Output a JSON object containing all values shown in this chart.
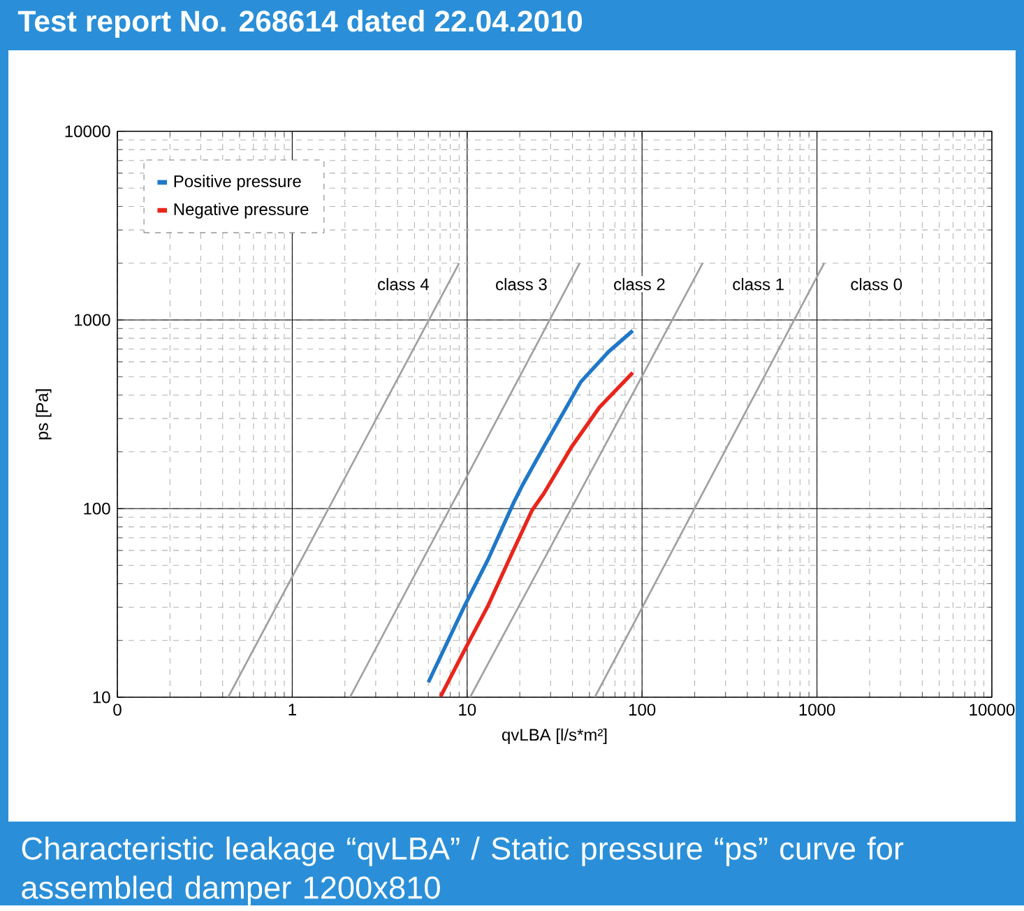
{
  "chart_data": {
    "type": "line",
    "title": "Test report No. 268614 dated 22.04.2010",
    "xlabel": "qvLBA [l/s*m²]",
    "ylabel": "ps [Pa]",
    "log": "xy",
    "grid": true,
    "legend": "top left",
    "marker": "none",
    "line_style": "solid",
    "xlim": [
      0.1,
      10000
    ],
    "ylim": [
      10,
      10000
    ],
    "xticks": [
      {
        "value": 0.1,
        "label": "0"
      },
      1,
      10,
      100,
      1000,
      10000
    ],
    "yticks": [
      10,
      100,
      1000,
      10000
    ],
    "series": [
      {
        "name": "Positive pressure",
        "color": "#1f78c8",
        "x": [
          6.0,
          9.7,
          13.2,
          18.4,
          20.8,
          27.4,
          44.7,
          64.4,
          88.5
        ],
        "values": [
          12.0,
          30.7,
          54,
          107,
          134,
          212,
          470,
          679,
          877
        ]
      },
      {
        "name": "Negative pressure",
        "color": "#e8261c",
        "x": [
          7.06,
          9.7,
          13.2,
          17.9,
          23.5,
          27.4,
          39.5,
          57,
          88.5
        ],
        "values": [
          10.1,
          17.9,
          30.7,
          57,
          98,
          120,
          212,
          344,
          526
        ]
      },
      {
        "color": "#a0a0a0",
        "x": [
          0.43,
          9.0
        ],
        "values": [
          10,
          2000
        ]
      },
      {
        "color": "#a0a0a0",
        "x": [
          2.14,
          44
        ],
        "values": [
          10,
          2000
        ]
      },
      {
        "color": "#a0a0a0",
        "x": [
          10.4,
          222
        ],
        "values": [
          10,
          2000
        ]
      },
      {
        "color": "#a0a0a0",
        "x": [
          53.7,
          1100
        ],
        "values": [
          10,
          2000
        ]
      }
    ],
    "annotations": [
      "class 4",
      "class 3",
      "class 2",
      "class 1",
      "class 0",
      "Characteristic leakage “qvLBA” / Static pressure “ps” curve for assembled damper 1200x810"
    ]
  }
}
